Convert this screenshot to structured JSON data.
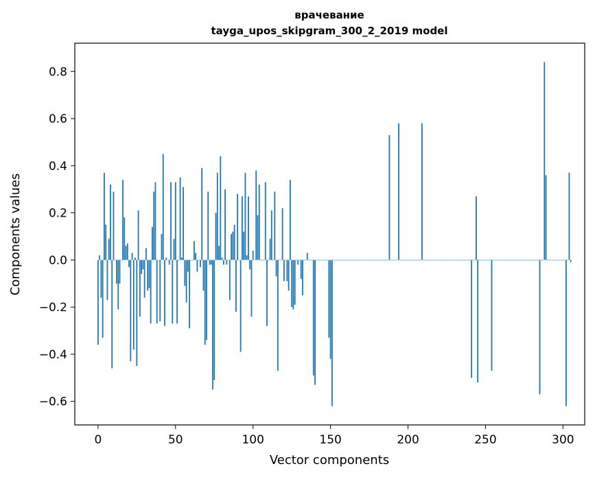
{
  "chart_data": {
    "type": "bar",
    "title": "врачевание",
    "subtitle": "tayga_upos_skipgram_300_2_2019 model",
    "xlabel": "Vector components",
    "ylabel": "Components values",
    "xlim": [
      -15,
      314
    ],
    "ylim": [
      -0.7,
      0.92
    ],
    "xticks": [
      0,
      50,
      100,
      150,
      200,
      250,
      300
    ],
    "yticks": [
      -0.6,
      -0.4,
      -0.2,
      0.0,
      0.2,
      0.4,
      0.6,
      0.8
    ],
    "ytick_labels": [
      "−0.6",
      "−0.4",
      "−0.2",
      "0.0",
      "0.2",
      "0.4",
      "0.6",
      "0.8"
    ],
    "grid": false,
    "bar_color": "#1f77b4",
    "series": [
      {
        "values": [
          -0.36,
          0.02,
          -0.16,
          -0.33,
          0.37,
          0.15,
          -0.17,
          0.09,
          0.32,
          -0.46,
          0.29,
          0.0,
          -0.1,
          -0.21,
          -0.1,
          0.0,
          0.34,
          0.18,
          0.06,
          0.07,
          -0.03,
          -0.43,
          0.03,
          -0.38,
          0.01,
          -0.45,
          0.21,
          -0.24,
          -0.06,
          -0.04,
          -0.16,
          0.05,
          -0.13,
          -0.12,
          -0.27,
          0.14,
          0.29,
          0.33,
          -0.27,
          0.0,
          -0.26,
          0.11,
          0.45,
          -0.28,
          0.01,
          0.0,
          -0.02,
          0.33,
          -0.27,
          0.09,
          0.33,
          -0.27,
          0.0,
          0.35,
          0.01,
          0.31,
          -0.11,
          -0.18,
          -0.05,
          -0.29,
          0.0,
          0.0,
          0.08,
          0.03,
          -0.05,
          0.0,
          -0.03,
          0.39,
          -0.13,
          -0.36,
          -0.34,
          0.29,
          -0.02,
          -0.02,
          -0.55,
          -0.51,
          0.2,
          0.37,
          0.06,
          0.44,
          0.01,
          -0.02,
          0.3,
          -0.02,
          0.0,
          -0.17,
          0.11,
          0.12,
          0.15,
          -0.22,
          0.28,
          0.0,
          -0.39,
          0.27,
          0.12,
          0.37,
          0.02,
          0.27,
          -0.04,
          -0.24,
          0.04,
          0.0,
          0.38,
          0.19,
          0.32,
          0.0,
          0.0,
          0.0,
          0.33,
          -0.28,
          0.0,
          0.09,
          0.21,
          0.0,
          0.29,
          -0.07,
          -0.47,
          0.0,
          0.0,
          0.22,
          -0.09,
          0.0,
          -0.09,
          -0.13,
          0.34,
          -0.2,
          -0.21,
          -0.19,
          0.0,
          -0.02,
          0.0,
          -0.08,
          -0.15,
          0.0,
          0.0,
          0.03,
          0.0,
          0.0,
          0.0,
          -0.49,
          -0.53,
          0.0,
          0.0,
          0.0,
          0.0,
          0.0,
          0.0,
          0.0,
          0.0,
          -0.33,
          -0.42,
          -0.62,
          0.0,
          0.0,
          0.0,
          0.0,
          0.0,
          0.0,
          0.0,
          0.0,
          0.0,
          0.0,
          0.0,
          0.0,
          0.0,
          0.0,
          0.0,
          0.0,
          0.0,
          0.0,
          0.0,
          0.0,
          0.0,
          0.0,
          0.0,
          0.0,
          0.0,
          0.0,
          0.0,
          0.0,
          0.0,
          0.0,
          0.0,
          0.0,
          0.0,
          0.0,
          0.0,
          0.0,
          0.53,
          0.0,
          0.0,
          0.0,
          0.0,
          0.0,
          0.58,
          0.0,
          0.0,
          0.0,
          0.0,
          0.0,
          0.0,
          0.0,
          0.0,
          0.0,
          0.0,
          0.0,
          0.0,
          0.0,
          0.0,
          0.58,
          0.0,
          0.0,
          0.0,
          0.0,
          0.0,
          0.0,
          0.0,
          0.0,
          0.0,
          0.0,
          0.0,
          0.0,
          0.0,
          0.0,
          0.0,
          0.0,
          0.0,
          0.0,
          0.0,
          0.0,
          0.0,
          0.0,
          0.0,
          0.0,
          0.0,
          0.0,
          0.0,
          0.0,
          0.0,
          0.0,
          0.0,
          -0.5,
          0.0,
          0.0,
          0.27,
          -0.52,
          0.0,
          0.0,
          0.0,
          0.0,
          0.0,
          0.0,
          0.0,
          0.0,
          -0.47,
          0.0,
          0.0,
          0.0,
          0.0,
          0.0,
          0.0,
          0.0,
          0.0,
          0.0,
          0.0,
          0.0,
          0.0,
          0.0,
          0.0,
          0.0,
          0.0,
          0.0,
          0.0,
          0.0,
          0.0,
          0.0,
          0.0,
          0.0,
          0.0,
          0.0,
          0.0,
          0.0,
          0.0,
          0.0,
          0.0,
          -0.57,
          0.0,
          0.0,
          0.84,
          0.36,
          0.0,
          0.0,
          0.0,
          0.0,
          0.0,
          0.0,
          0.0,
          0.0,
          0.0,
          0.0,
          0.0,
          0.0,
          -0.62,
          0.0,
          0.37,
          -0.01
        ]
      }
    ]
  }
}
